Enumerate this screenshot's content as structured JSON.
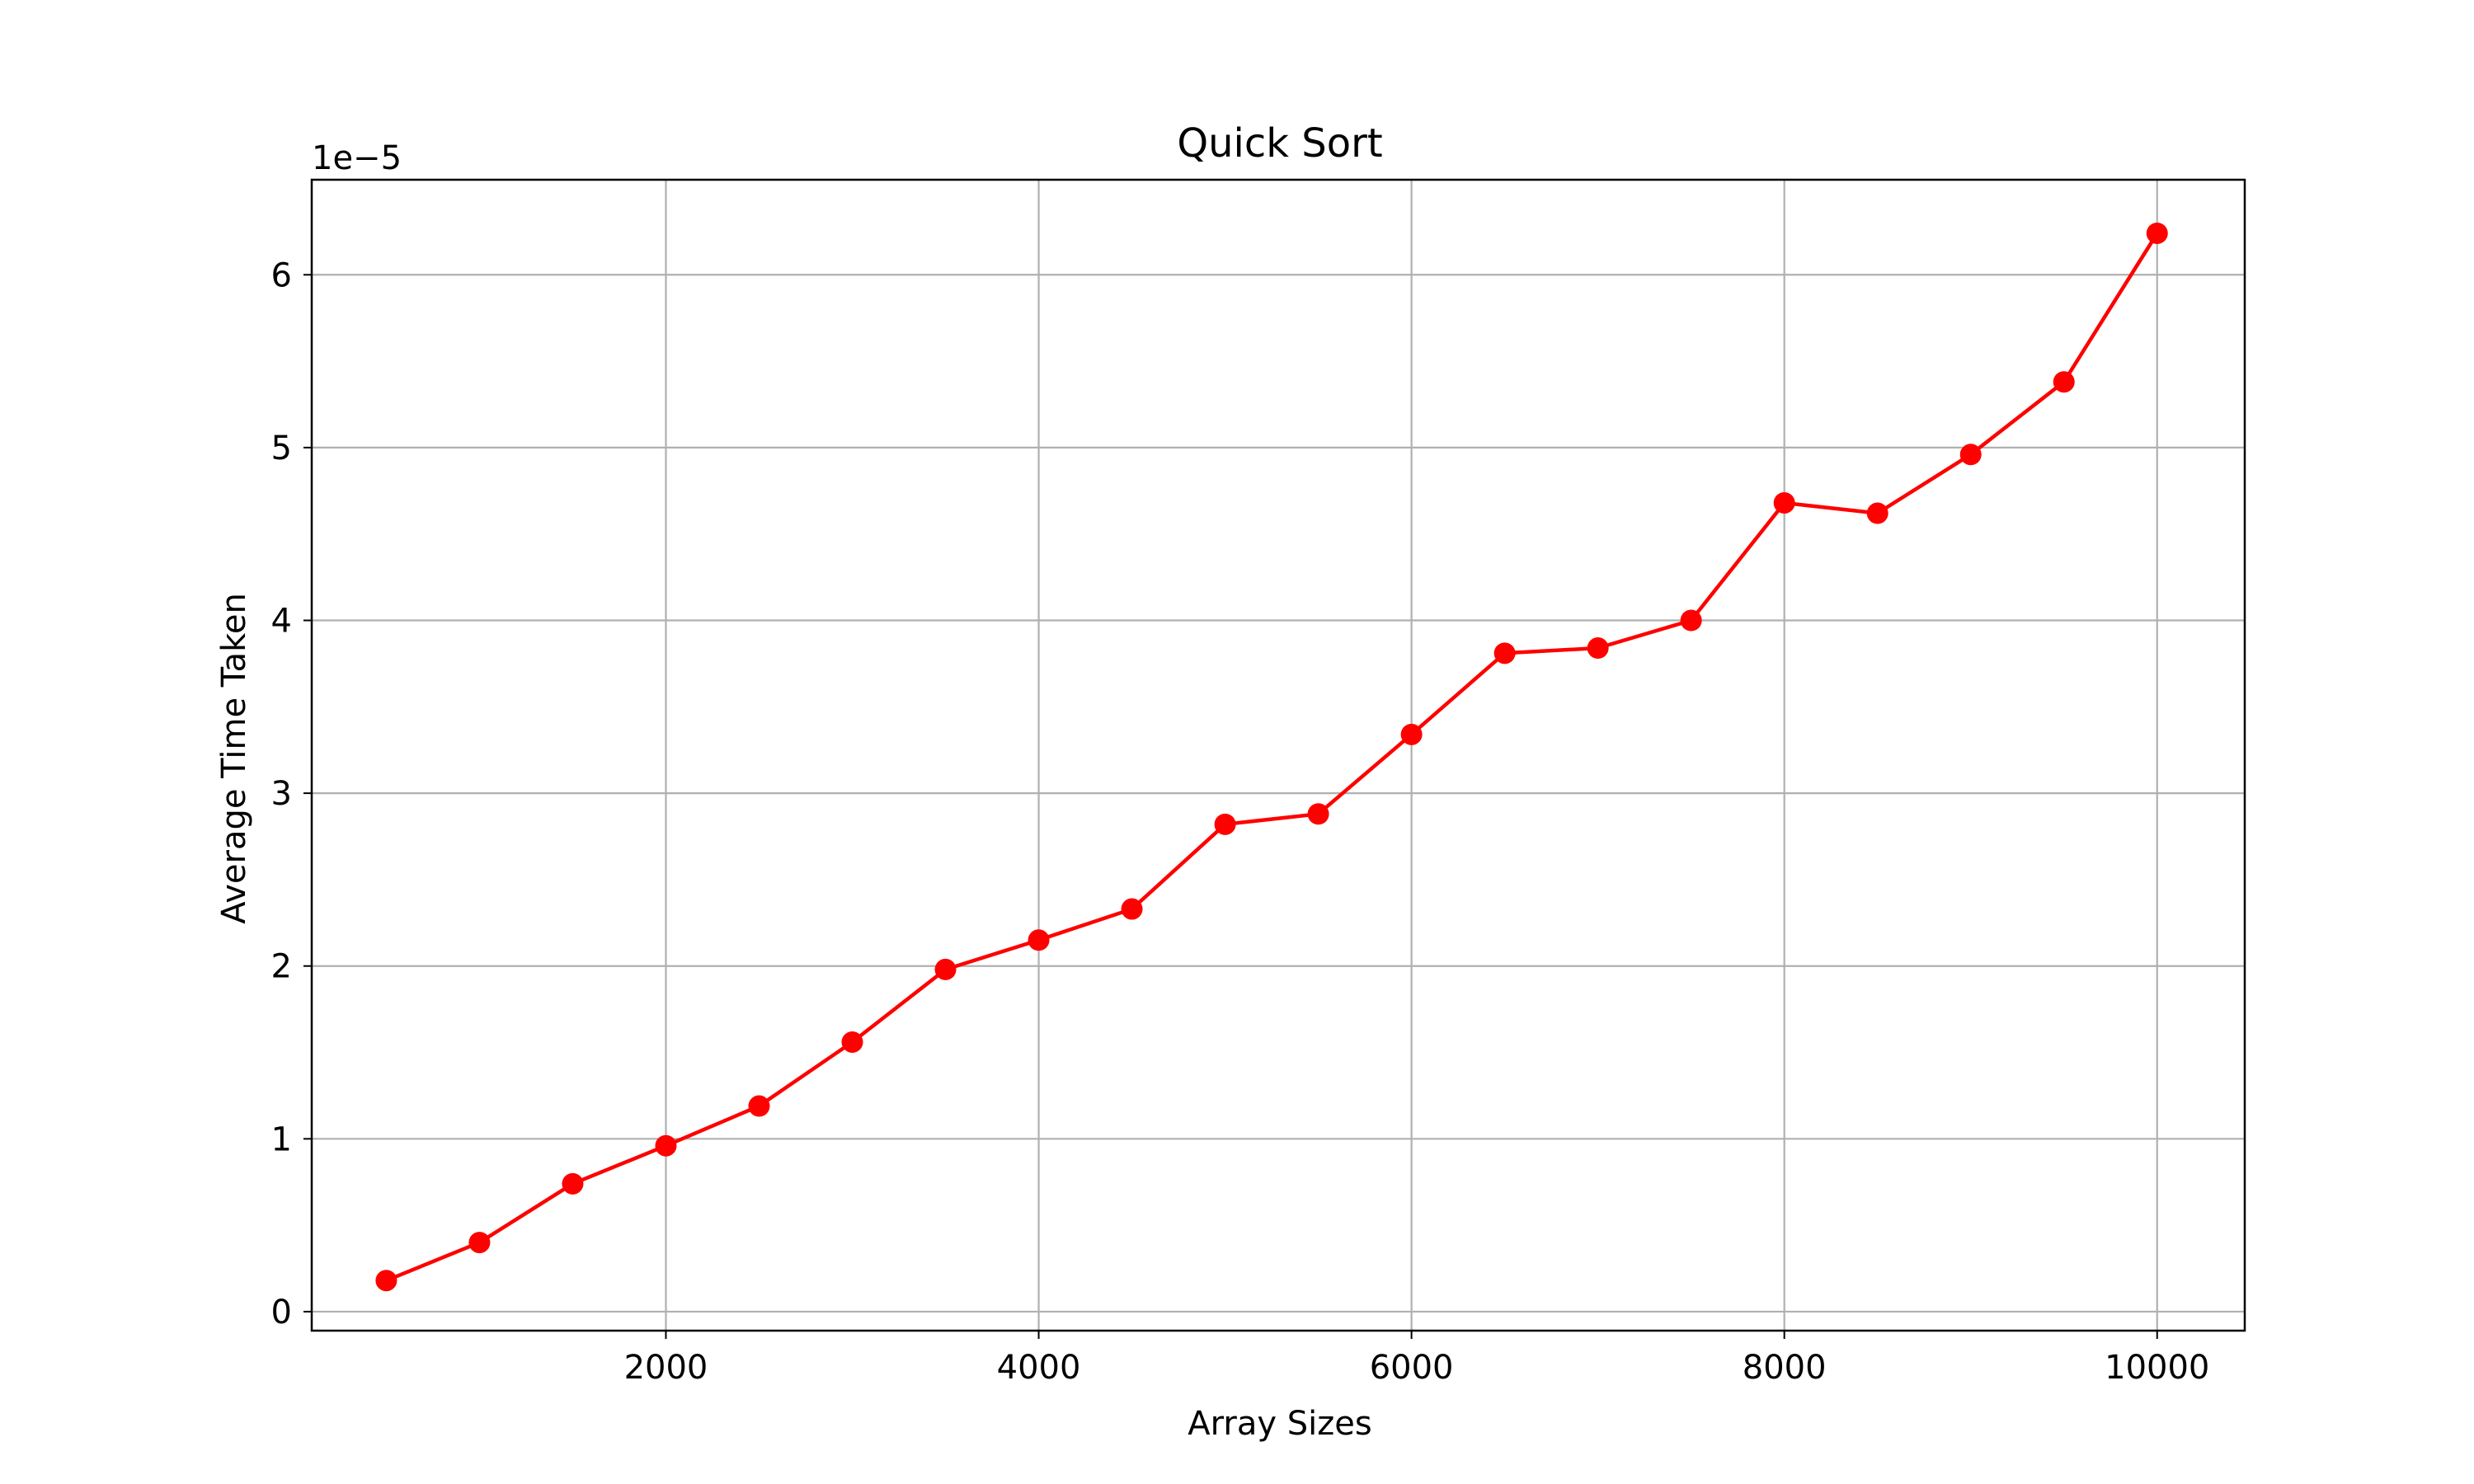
{
  "chart_data": {
    "type": "line",
    "title": "Quick Sort",
    "xlabel": "Array Sizes",
    "ylabel": "Average Time Taken",
    "y_offset_label": "1e−5",
    "xlim": [
      100,
      10470
    ],
    "ylim": [
      -0.11,
      6.55
    ],
    "x_ticks": [
      2000,
      4000,
      6000,
      8000,
      10000
    ],
    "x_tick_labels": [
      "2000",
      "4000",
      "6000",
      "8000",
      "10000"
    ],
    "y_ticks": [
      0,
      1,
      2,
      3,
      4,
      5,
      6
    ],
    "y_tick_labels": [
      "0",
      "1",
      "2",
      "3",
      "4",
      "5",
      "6"
    ],
    "grid": true,
    "series": [
      {
        "color": "#ff0000",
        "marker": "circle",
        "x": [
          500,
          1000,
          1500,
          2000,
          2500,
          3000,
          3500,
          4000,
          4500,
          5000,
          5500,
          6000,
          6500,
          7000,
          7500,
          8000,
          8500,
          9000,
          9500,
          10000
        ],
        "y": [
          0.18,
          0.4,
          0.74,
          0.96,
          1.19,
          1.56,
          1.98,
          2.15,
          2.33,
          2.82,
          2.88,
          3.34,
          3.81,
          3.84,
          4.0,
          4.68,
          4.62,
          4.96,
          5.38,
          6.24
        ]
      }
    ]
  }
}
